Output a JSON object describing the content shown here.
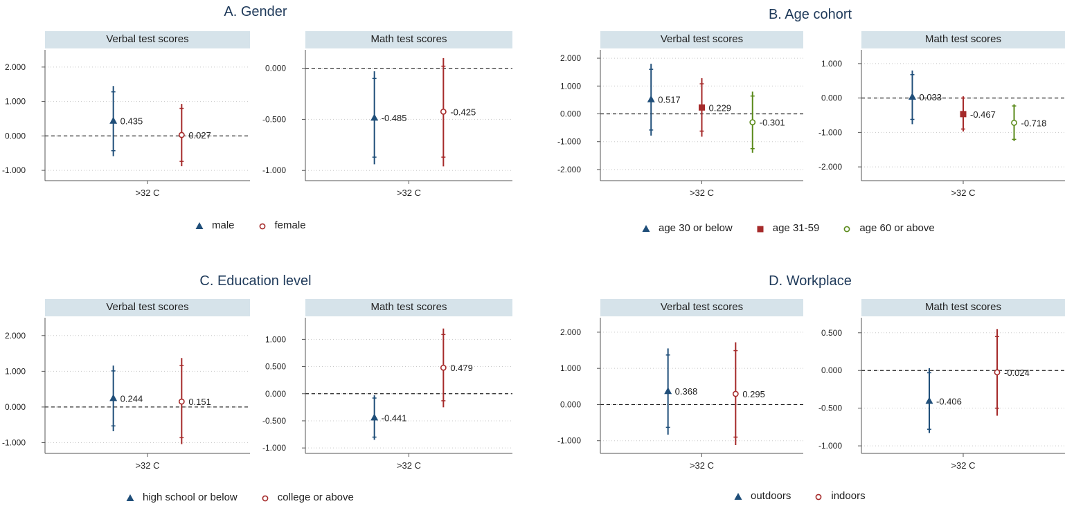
{
  "colors": {
    "blue": "#1f4e79",
    "red": "#a52a2a",
    "green": "#5a8a1a",
    "strip": "#d6e3ea",
    "axis": "#555555",
    "grid": "#c8c8c8"
  },
  "panels": [
    {
      "title": "A. Gender",
      "legend": [
        {
          "label": "male",
          "marker": "triangle",
          "color": "#1f4e79"
        },
        {
          "label": "female",
          "marker": "circle-open",
          "color": "#a52a2a"
        }
      ]
    },
    {
      "title": "B. Age cohort",
      "legend": [
        {
          "label": "age 30 or below",
          "marker": "triangle",
          "color": "#1f4e79"
        },
        {
          "label": "age 31-59",
          "marker": "square",
          "color": "#a52a2a"
        },
        {
          "label": "age 60 or above",
          "marker": "circle-open",
          "color": "#5a8a1a"
        }
      ]
    },
    {
      "title": "C. Education level",
      "legend": [
        {
          "label": "high school or below",
          "marker": "triangle",
          "color": "#1f4e79"
        },
        {
          "label": "college or above",
          "marker": "circle-open",
          "color": "#a52a2a"
        }
      ]
    },
    {
      "title": "D. Workplace",
      "legend": [
        {
          "label": "outdoors",
          "marker": "triangle",
          "color": "#1f4e79"
        },
        {
          "label": "indoors",
          "marker": "circle-open",
          "color": "#a52a2a"
        }
      ]
    }
  ],
  "chart_data": [
    {
      "type": "scatter",
      "panel": "A. Gender",
      "title": "Verbal test scores",
      "xlabel": ">32 C",
      "ylim": [
        -1.3,
        2.5
      ],
      "yticks": [
        -1,
        0,
        1,
        2
      ],
      "tick_labels": [
        "-1.000",
        "0.000",
        "1.000",
        "2.000"
      ],
      "series": [
        {
          "name": "male",
          "value": 0.435,
          "ci90": [
            -0.43,
            1.28
          ],
          "ci95": [
            -0.59,
            1.45
          ],
          "marker": "triangle",
          "color": "#1f4e79"
        },
        {
          "name": "female",
          "value": 0.027,
          "ci90": [
            -0.74,
            0.8
          ],
          "ci95": [
            -0.88,
            0.93
          ],
          "marker": "circle-open",
          "color": "#a52a2a"
        }
      ]
    },
    {
      "type": "scatter",
      "panel": "A. Gender",
      "title": "Math test scores",
      "xlabel": ">32 C",
      "ylim": [
        -1.1,
        0.18
      ],
      "yticks": [
        -1,
        -0.5,
        0
      ],
      "tick_labels": [
        "-1.000",
        "-0.500",
        "0.000"
      ],
      "series": [
        {
          "name": "male",
          "value": -0.485,
          "ci90": [
            -0.87,
            -0.1
          ],
          "ci95": [
            -0.94,
            -0.03
          ],
          "marker": "triangle",
          "color": "#1f4e79"
        },
        {
          "name": "female",
          "value": -0.425,
          "ci90": [
            -0.87,
            0.02
          ],
          "ci95": [
            -0.96,
            0.1
          ],
          "marker": "circle-open",
          "color": "#a52a2a"
        }
      ]
    },
    {
      "type": "scatter",
      "panel": "B. Age cohort",
      "title": "Verbal test scores",
      "xlabel": ">32 C",
      "ylim": [
        -2.4,
        2.3
      ],
      "yticks": [
        -2,
        -1,
        0,
        1,
        2
      ],
      "tick_labels": [
        "-2.000",
        "-1.000",
        "0.000",
        "1.000",
        "2.000"
      ],
      "series": [
        {
          "name": "age 30 or below",
          "value": 0.517,
          "ci90": [
            -0.58,
            1.6
          ],
          "ci95": [
            -0.78,
            1.8
          ],
          "marker": "triangle",
          "color": "#1f4e79"
        },
        {
          "name": "age 31-59",
          "value": 0.229,
          "ci90": [
            -0.62,
            1.08
          ],
          "ci95": [
            -0.82,
            1.28
          ],
          "marker": "square",
          "color": "#a52a2a"
        },
        {
          "name": "age 60 or above",
          "value": -0.301,
          "ci90": [
            -1.25,
            0.64
          ],
          "ci95": [
            -1.4,
            0.8
          ],
          "marker": "circle-open",
          "color": "#5a8a1a"
        }
      ]
    },
    {
      "type": "scatter",
      "panel": "B. Age cohort",
      "title": "Math test scores",
      "xlabel": ">32 C",
      "ylim": [
        -2.4,
        1.4
      ],
      "yticks": [
        -2,
        -1,
        0,
        1
      ],
      "tick_labels": [
        "-2.000",
        "-1.000",
        "0.000",
        "1.000"
      ],
      "series": [
        {
          "name": "age 30 or below",
          "value": 0.033,
          "ci90": [
            -0.62,
            0.68
          ],
          "ci95": [
            -0.76,
            0.8
          ],
          "marker": "triangle",
          "color": "#1f4e79"
        },
        {
          "name": "age 31-59",
          "value": -0.467,
          "ci90": [
            -0.9,
            0.0
          ],
          "ci95": [
            -0.97,
            0.05
          ],
          "marker": "square",
          "color": "#a52a2a"
        },
        {
          "name": "age 60 or above",
          "value": -0.718,
          "ci90": [
            -1.2,
            -0.23
          ],
          "ci95": [
            -1.25,
            -0.18
          ],
          "marker": "circle-open",
          "color": "#5a8a1a"
        }
      ]
    },
    {
      "type": "scatter",
      "panel": "C. Education level",
      "title": "Verbal test scores",
      "xlabel": ">32 C",
      "ylim": [
        -1.3,
        2.5
      ],
      "yticks": [
        -1,
        0,
        1,
        2
      ],
      "tick_labels": [
        "-1.000",
        "0.000",
        "1.000",
        "2.000"
      ],
      "series": [
        {
          "name": "high school or below",
          "value": 0.244,
          "ci90": [
            -0.53,
            1.01
          ],
          "ci95": [
            -0.68,
            1.16
          ],
          "marker": "triangle",
          "color": "#1f4e79"
        },
        {
          "name": "college or above",
          "value": 0.151,
          "ci90": [
            -0.86,
            1.16
          ],
          "ci95": [
            -1.04,
            1.37
          ],
          "marker": "circle-open",
          "color": "#a52a2a"
        }
      ]
    },
    {
      "type": "scatter",
      "panel": "C. Education level",
      "title": "Math test scores",
      "xlabel": ">32 C",
      "ylim": [
        -1.1,
        1.4
      ],
      "yticks": [
        -1,
        -0.5,
        0,
        0.5,
        1
      ],
      "tick_labels": [
        "-1.000",
        "-0.500",
        "0.000",
        "0.500",
        "1.000"
      ],
      "series": [
        {
          "name": "high school or below",
          "value": -0.441,
          "ci90": [
            -0.8,
            -0.08
          ],
          "ci95": [
            -0.85,
            -0.03
          ],
          "marker": "triangle",
          "color": "#1f4e79"
        },
        {
          "name": "college or above",
          "value": 0.479,
          "ci90": [
            -0.13,
            1.09
          ],
          "ci95": [
            -0.25,
            1.2
          ],
          "marker": "circle-open",
          "color": "#a52a2a"
        }
      ]
    },
    {
      "type": "scatter",
      "panel": "D. Workplace",
      "title": "Verbal test scores",
      "xlabel": ">32 C",
      "ylim": [
        -1.35,
        2.4
      ],
      "yticks": [
        -1,
        0,
        1,
        2
      ],
      "tick_labels": [
        "-1.000",
        "0.000",
        "1.000",
        "2.000"
      ],
      "series": [
        {
          "name": "outdoors",
          "value": 0.368,
          "ci90": [
            -0.63,
            1.37
          ],
          "ci95": [
            -0.83,
            1.55
          ],
          "marker": "triangle",
          "color": "#1f4e79"
        },
        {
          "name": "indoors",
          "value": 0.295,
          "ci90": [
            -0.9,
            1.49
          ],
          "ci95": [
            -1.12,
            1.72
          ],
          "marker": "circle-open",
          "color": "#a52a2a"
        }
      ]
    },
    {
      "type": "scatter",
      "panel": "D. Workplace",
      "title": "Math test scores",
      "xlabel": ">32 C",
      "ylim": [
        -1.1,
        0.7
      ],
      "yticks": [
        -1,
        -0.5,
        0,
        0.5
      ],
      "tick_labels": [
        "-1.000",
        "-0.500",
        "0.000",
        "0.500"
      ],
      "series": [
        {
          "name": "outdoors",
          "value": -0.406,
          "ci90": [
            -0.78,
            -0.03
          ],
          "ci95": [
            -0.83,
            0.03
          ],
          "marker": "triangle",
          "color": "#1f4e79"
        },
        {
          "name": "indoors",
          "value": -0.024,
          "ci90": [
            -0.5,
            0.45
          ],
          "ci95": [
            -0.6,
            0.55
          ],
          "marker": "circle-open",
          "color": "#a52a2a"
        }
      ]
    }
  ]
}
